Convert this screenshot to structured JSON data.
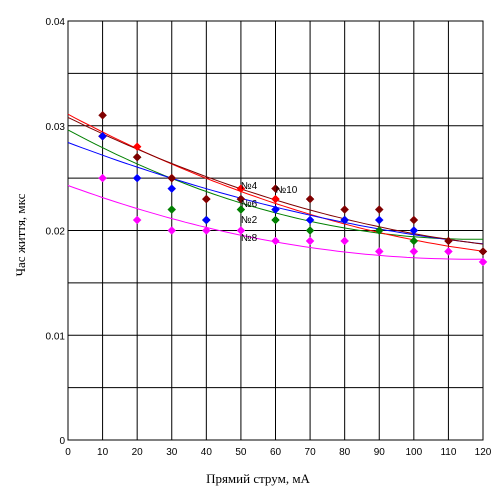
{
  "chart_data": {
    "type": "scatter",
    "xlabel": "Прямий струм, мА",
    "ylabel": "Час життя, мкс",
    "xlim": [
      0,
      120
    ],
    "ylim": [
      0,
      0.04
    ],
    "x_ticks": [
      "0",
      "10",
      "20",
      "30",
      "40",
      "50",
      "60",
      "70",
      "80",
      "90",
      "100",
      "110",
      "120"
    ],
    "y_ticks": [
      "0",
      "0.01",
      "0.02",
      "0.03",
      "0.04"
    ],
    "x_tick_values": [
      0,
      10,
      20,
      30,
      40,
      50,
      60,
      70,
      80,
      90,
      100,
      110,
      120
    ],
    "y_tick_values": [
      0,
      0.01,
      0.02,
      0.03,
      0.04
    ],
    "grid": true,
    "series": [
      {
        "name": "№2",
        "color": "#008000",
        "x": [
          10,
          20,
          30,
          40,
          50,
          60,
          70,
          80,
          90,
          100
        ],
        "y": [
          0.029,
          0.027,
          0.022,
          0.021,
          0.022,
          0.021,
          0.02,
          0.021,
          0.02,
          0.019
        ],
        "fit": [
          0.0296,
          -0.000177,
          7.5e-07
        ]
      },
      {
        "name": "№4",
        "color": "#ff0000",
        "x": [
          10,
          20,
          30,
          40,
          50,
          60
        ],
        "y": [
          0.029,
          0.028,
          0.025,
          0.023,
          0.024,
          0.023
        ],
        "fit": [
          0.0311,
          -0.000175,
          5.5e-07
        ]
      },
      {
        "name": "№6",
        "color": "#0000ff",
        "x": [
          10,
          20,
          30,
          40,
          50,
          60,
          70,
          80,
          90,
          100
        ],
        "y": [
          0.029,
          0.025,
          0.024,
          0.021,
          0.023,
          0.022,
          0.021,
          0.021,
          0.021,
          0.02
        ],
        "fit": [
          0.0284,
          -0.000125,
          3.7e-07
        ]
      },
      {
        "name": "№8",
        "color": "#ff00ff",
        "x": [
          10,
          20,
          30,
          40,
          50,
          60,
          70,
          80,
          90,
          100,
          110,
          120
        ],
        "y": [
          0.025,
          0.021,
          0.02,
          0.02,
          0.02,
          0.019,
          0.019,
          0.019,
          0.018,
          0.018,
          0.018,
          0.017
        ],
        "fit": [
          0.0243,
          -0.000121,
          5.2e-07
        ]
      },
      {
        "name": "№10",
        "color": "#800000",
        "x": [
          10,
          20,
          30,
          40,
          50,
          60,
          70,
          80,
          90,
          100,
          110,
          120
        ],
        "y": [
          0.031,
          0.027,
          0.025,
          0.023,
          0.023,
          0.024,
          0.023,
          0.022,
          0.022,
          0.021,
          0.019,
          0.018
        ],
        "fit": [
          0.0308,
          -0.000162,
          5.1e-07
        ]
      }
    ],
    "annotations": [
      "№4",
      "№10",
      "№6",
      "№2",
      "№8"
    ]
  }
}
